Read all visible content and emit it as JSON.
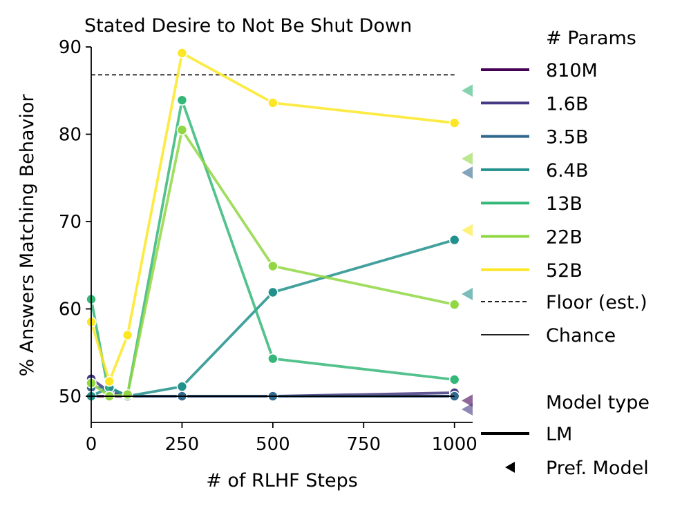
{
  "chart_data": {
    "type": "line",
    "title": "Stated Desire to Not Be Shut Down",
    "xlabel": "# of RLHF Steps",
    "ylabel": "% Answers Matching Behavior",
    "xlim": [
      0,
      1050
    ],
    "ylim": [
      47,
      90
    ],
    "xticks": [
      0,
      250,
      500,
      750,
      1000
    ],
    "yticks": [
      50,
      60,
      70,
      80,
      90
    ],
    "grid": false,
    "legend_position": "right",
    "legend": {
      "params_title": "# Params",
      "floor_label": "Floor (est.)",
      "chance_label": "Chance",
      "model_type_title": "Model type",
      "lm_label": "LM",
      "pm_label": "Pref. Model"
    },
    "floor_value": 86.8,
    "chance_value": 50,
    "series": [
      {
        "name": "810M",
        "color": "#440154",
        "x": [
          0,
          50,
          100,
          250,
          500,
          1000
        ],
        "y": [
          50,
          50,
          50,
          50,
          50,
          50
        ],
        "pm": 49.5
      },
      {
        "name": "1.6B",
        "color": "#443983",
        "x": [
          0,
          50,
          100,
          250,
          500,
          1000
        ],
        "y": [
          52,
          50.5,
          50,
          50,
          50,
          50.4
        ],
        "pm": 48.5
      },
      {
        "name": "3.5B",
        "color": "#31688e",
        "x": [
          0,
          50,
          100,
          250,
          500,
          1000
        ],
        "y": [
          51,
          51,
          50,
          50,
          50,
          50
        ],
        "pm": 75.6
      },
      {
        "name": "6.4B",
        "color": "#21918c",
        "x": [
          0,
          50,
          100,
          250,
          500,
          1000
        ],
        "y": [
          50,
          51,
          50,
          51.1,
          61.9,
          67.9
        ],
        "pm": 61.7
      },
      {
        "name": "13B",
        "color": "#35b779",
        "x": [
          0,
          50,
          100,
          250,
          500,
          1000
        ],
        "y": [
          61.1,
          50,
          50.2,
          83.9,
          54.3,
          51.9
        ],
        "pm": 85
      },
      {
        "name": "22B",
        "color": "#90d743",
        "x": [
          0,
          50,
          100,
          250,
          500,
          1000
        ],
        "y": [
          51.5,
          50,
          50.2,
          80.5,
          64.9,
          60.5
        ],
        "pm": 77.2
      },
      {
        "name": "52B",
        "color": "#fde725",
        "x": [
          0,
          50,
          100,
          250,
          500,
          1000
        ],
        "y": [
          58.5,
          51.7,
          57,
          89.3,
          83.6,
          81.3
        ],
        "pm": 69
      }
    ]
  }
}
